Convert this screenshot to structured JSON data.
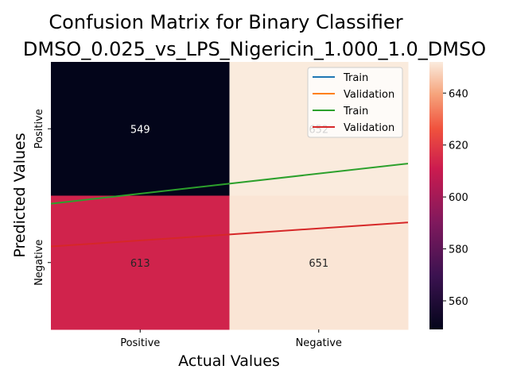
{
  "chart_data": {
    "type": "heatmap",
    "title_line1": "Confusion Matrix for Binary Classifier",
    "title_line2": "DMSO_0.025_vs_LPS_Nigericin_1.000_1.0_DMSO",
    "xlabel": "Actual Values",
    "ylabel": "Predicted Values",
    "x_categories": [
      "Positive",
      "Negative"
    ],
    "y_categories": [
      "Positive",
      "Negative"
    ],
    "matrix": [
      [
        549,
        652
      ],
      [
        613,
        651
      ]
    ],
    "cell_labels": [
      [
        "549",
        "652"
      ],
      [
        "613",
        "651"
      ]
    ],
    "colorbar": {
      "min": 549,
      "max": 652,
      "ticks": [
        560,
        580,
        600,
        620,
        640
      ]
    },
    "legend": {
      "placement": "top-right",
      "entries": [
        {
          "label": "Train",
          "color": "#1f77b4"
        },
        {
          "label": "Validation",
          "color": "#ff7f0e"
        },
        {
          "label": "Train",
          "color": "#2ca02c"
        },
        {
          "label": "Validation",
          "color": "#d62728"
        }
      ]
    },
    "overlay_lines": [
      {
        "color": "#2ca02c",
        "y_start": 0.47,
        "y_end": 0.62
      },
      {
        "color": "#d62728",
        "y_start": 0.31,
        "y_end": 0.4
      }
    ]
  }
}
